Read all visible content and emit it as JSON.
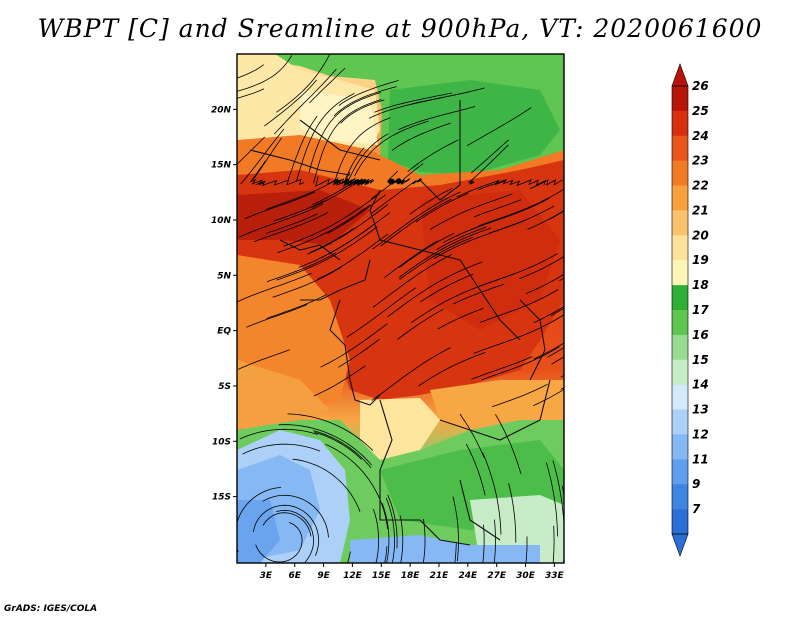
{
  "title": "WBPT [C] and Sreamline at 900hPa, VT: 2020061600",
  "credit": "GrADS: IGES/COLA",
  "map": {
    "lat_range": [
      -21,
      25
    ],
    "lon_range": [
      0,
      34
    ],
    "lat_ticks": [
      {
        "value": 20,
        "label": "20N"
      },
      {
        "value": 15,
        "label": "15N"
      },
      {
        "value": 10,
        "label": "10N"
      },
      {
        "value": 5,
        "label": "5N"
      },
      {
        "value": 0,
        "label": "EQ"
      },
      {
        "value": -5,
        "label": "5S"
      },
      {
        "value": -10,
        "label": "10S"
      },
      {
        "value": -15,
        "label": "15S"
      }
    ],
    "lon_ticks": [
      {
        "value": 3,
        "label": "3E"
      },
      {
        "value": 6,
        "label": "6E"
      },
      {
        "value": 9,
        "label": "9E"
      },
      {
        "value": 12,
        "label": "12E"
      },
      {
        "value": 15,
        "label": "15E"
      },
      {
        "value": 18,
        "label": "18E"
      },
      {
        "value": 21,
        "label": "21E"
      },
      {
        "value": 24,
        "label": "24E"
      },
      {
        "value": 27,
        "label": "27E"
      },
      {
        "value": 30,
        "label": "30E"
      },
      {
        "value": 33,
        "label": "33E"
      }
    ]
  },
  "colorbar": {
    "labels": [
      "7",
      "9",
      "11",
      "12",
      "13",
      "14",
      "15",
      "16",
      "17",
      "18",
      "19",
      "20",
      "21",
      "22",
      "23",
      "24",
      "25",
      "26"
    ],
    "colors": [
      "#2b6fd6",
      "#3f86e4",
      "#5f9ff0",
      "#86b8f4",
      "#acd0f7",
      "#d4e9fa",
      "#c6edc6",
      "#98dc91",
      "#5fc652",
      "#2fae36",
      "#fff5b8",
      "#fde19a",
      "#f9c36c",
      "#f7a03c",
      "#f37a25",
      "#e95518",
      "#d8300f",
      "#b8150a"
    ]
  }
}
